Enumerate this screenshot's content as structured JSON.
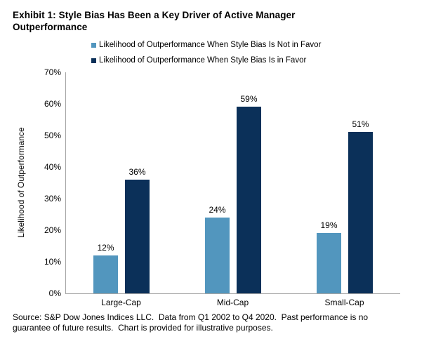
{
  "title": "Exhibit 1: Style Bias Has Been a Key Driver of Active Manager Outperformance",
  "source_note": "Source: S&P Dow Jones Indices LLC.  Data from Q1 2002 to Q4 2020.  Past performance is no guarantee of future results.  Chart is provided for illustrative purposes.",
  "chart_data": {
    "type": "bar",
    "title": "Exhibit 1: Style Bias Has Been a Key Driver of Active Manager Outperformance",
    "categories": [
      "Large-Cap",
      "Mid-Cap",
      "Small-Cap"
    ],
    "series": [
      {
        "name": "Likelihood of Outperformance When Style Bias Is Not in Favor",
        "color": "#5296BE",
        "values": [
          12,
          24,
          19
        ]
      },
      {
        "name": "Likelihood of Outperformance When Style Bias Is in Favor",
        "color": "#0B3059",
        "values": [
          36,
          59,
          51
        ]
      }
    ],
    "data_label_format": "{v}%",
    "xlabel": "",
    "ylabel": "Likelihood of Outperformance",
    "ylim": [
      0,
      70
    ],
    "ytick_step": 10,
    "ytick_suffix": "%",
    "grid": false,
    "legend_position": "top",
    "axis_color": "#a6a6a6"
  }
}
